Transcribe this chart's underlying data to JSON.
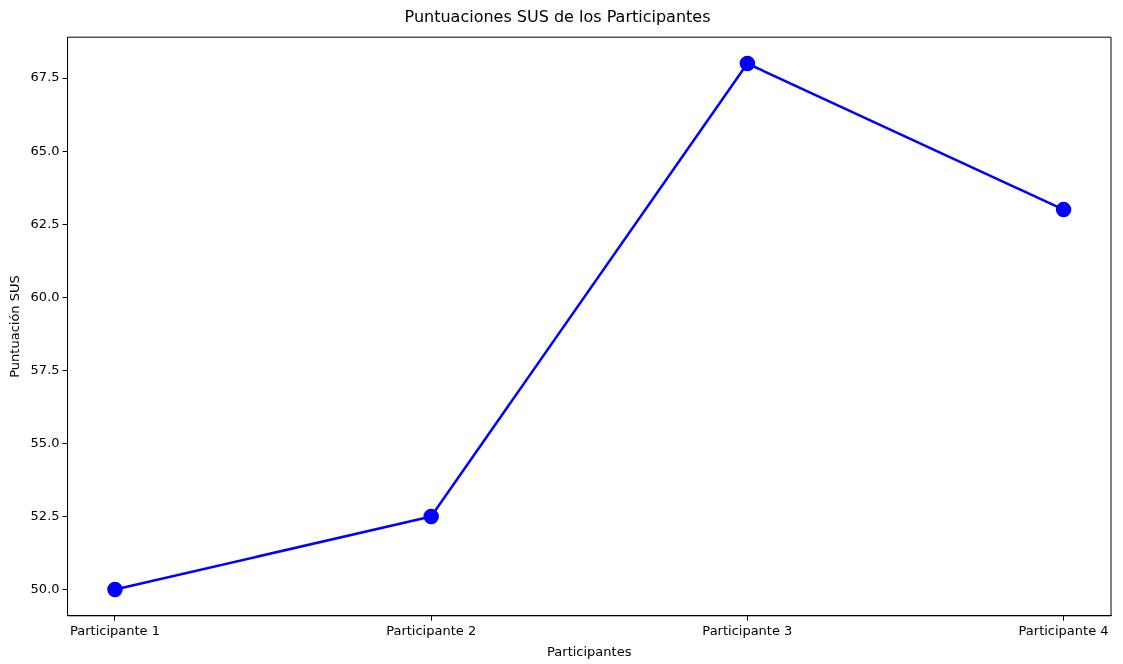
{
  "chart_data": {
    "type": "line",
    "title": "Puntuaciones SUS de los Participantes",
    "xlabel": "Participantes",
    "ylabel": "Puntuación SUS",
    "categories": [
      "Participante 1",
      "Participante 2",
      "Participante 3",
      "Participante 4"
    ],
    "series": [
      {
        "color": "#0000ff",
        "values": [
          50,
          52.5,
          68,
          63
        ]
      }
    ],
    "ylim": [
      49.1,
      68.9
    ],
    "yticks": [
      {
        "value": 50,
        "label": "50.0"
      },
      {
        "value": 52.5,
        "label": "52.5"
      },
      {
        "value": 55,
        "label": "55.0"
      },
      {
        "value": 57.5,
        "label": "57.5"
      },
      {
        "value": 60,
        "label": "60.0"
      },
      {
        "value": 62.5,
        "label": "62.5"
      },
      {
        "value": 65,
        "label": "65.0"
      },
      {
        "value": 67.5,
        "label": "67.5"
      }
    ],
    "grid": false,
    "legend": false,
    "marker": "circle",
    "line_style": "solid"
  }
}
